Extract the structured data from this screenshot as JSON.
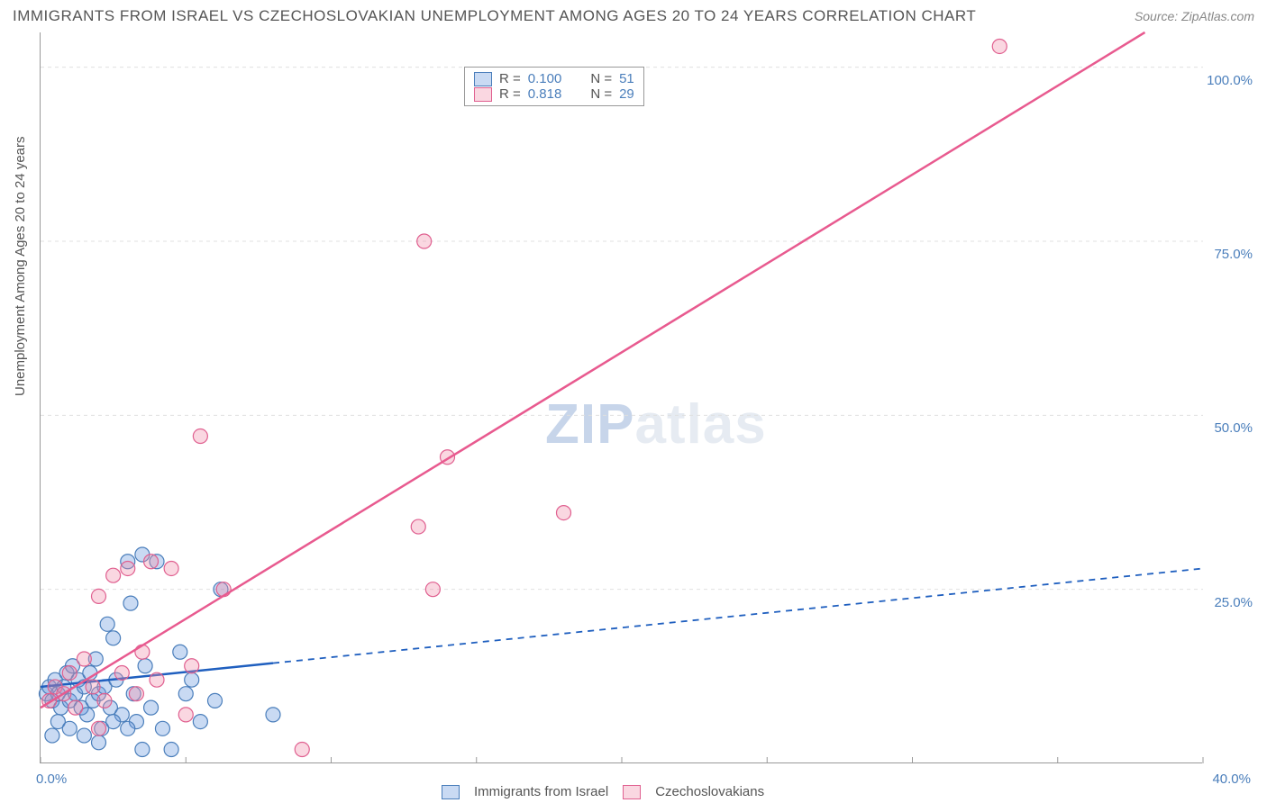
{
  "title": "IMMIGRANTS FROM ISRAEL VS CZECHOSLOVAKIAN UNEMPLOYMENT AMONG AGES 20 TO 24 YEARS CORRELATION CHART",
  "source": "Source: ZipAtlas.com",
  "ylabel": "Unemployment Among Ages 20 to 24 years",
  "watermark_zip": "ZIP",
  "watermark_atlas": "atlas",
  "chart": {
    "type": "scatter-correlation",
    "background_color": "#ffffff",
    "grid_color": "#e0e0e0",
    "axis_color": "#999999",
    "label_color": "#4a7ebb",
    "xlim": [
      0,
      40
    ],
    "ylim": [
      0,
      105
    ],
    "xticks": [
      0,
      5,
      10,
      15,
      20,
      25,
      30,
      35,
      40
    ],
    "xlabels_shown": {
      "0": "0.0%",
      "40": "40.0%"
    },
    "yticks": [
      25,
      50,
      75,
      100
    ],
    "ylabels": [
      "25.0%",
      "50.0%",
      "75.0%",
      "100.0%"
    ],
    "series": [
      {
        "name": "Immigrants from Israel",
        "color_fill": "rgba(100,150,220,0.35)",
        "color_stroke": "#4a7ebb",
        "line_color": "#1f5fbf",
        "line_width": 2.5,
        "line_dash_after": 8,
        "marker_radius": 8,
        "R": "0.100",
        "N": "51",
        "trend": {
          "x1": 0,
          "y1": 11,
          "x2": 40,
          "y2": 28
        },
        "points": [
          [
            0.2,
            10
          ],
          [
            0.3,
            11
          ],
          [
            0.4,
            9
          ],
          [
            0.5,
            12
          ],
          [
            0.6,
            10
          ],
          [
            0.7,
            8
          ],
          [
            0.8,
            11
          ],
          [
            0.9,
            13
          ],
          [
            1.0,
            9
          ],
          [
            1.1,
            14
          ],
          [
            1.2,
            10
          ],
          [
            1.3,
            12
          ],
          [
            1.4,
            8
          ],
          [
            1.5,
            11
          ],
          [
            1.6,
            7
          ],
          [
            1.7,
            13
          ],
          [
            1.8,
            9
          ],
          [
            1.9,
            15
          ],
          [
            2.0,
            10
          ],
          [
            2.1,
            5
          ],
          [
            2.2,
            11
          ],
          [
            2.3,
            20
          ],
          [
            2.4,
            8
          ],
          [
            2.5,
            18
          ],
          [
            2.6,
            12
          ],
          [
            2.8,
            7
          ],
          [
            3.0,
            29
          ],
          [
            3.1,
            23
          ],
          [
            3.2,
            10
          ],
          [
            3.3,
            6
          ],
          [
            3.5,
            30
          ],
          [
            3.6,
            14
          ],
          [
            3.8,
            8
          ],
          [
            4.0,
            29
          ],
          [
            4.2,
            5
          ],
          [
            4.5,
            2
          ],
          [
            4.8,
            16
          ],
          [
            5.0,
            10
          ],
          [
            5.2,
            12
          ],
          [
            5.5,
            6
          ],
          [
            6.0,
            9
          ],
          [
            6.2,
            25
          ],
          [
            0.4,
            4
          ],
          [
            0.6,
            6
          ],
          [
            1.0,
            5
          ],
          [
            1.5,
            4
          ],
          [
            2.0,
            3
          ],
          [
            2.5,
            6
          ],
          [
            3.0,
            5
          ],
          [
            3.5,
            2
          ],
          [
            8.0,
            7
          ]
        ]
      },
      {
        "name": "Czechoslovakians",
        "color_fill": "rgba(240,140,170,0.35)",
        "color_stroke": "#e06090",
        "line_color": "#e85a8f",
        "line_width": 2.5,
        "marker_radius": 8,
        "R": "0.818",
        "N": "29",
        "trend": {
          "x1": 0,
          "y1": 8,
          "x2": 38,
          "y2": 105
        },
        "points": [
          [
            0.3,
            9
          ],
          [
            0.5,
            11
          ],
          [
            0.8,
            10
          ],
          [
            1.0,
            13
          ],
          [
            1.2,
            8
          ],
          [
            1.5,
            15
          ],
          [
            1.8,
            11
          ],
          [
            2.0,
            24
          ],
          [
            2.2,
            9
          ],
          [
            2.5,
            27
          ],
          [
            2.8,
            13
          ],
          [
            3.0,
            28
          ],
          [
            3.3,
            10
          ],
          [
            3.5,
            16
          ],
          [
            3.8,
            29
          ],
          [
            4.0,
            12
          ],
          [
            4.5,
            28
          ],
          [
            5.0,
            7
          ],
          [
            5.2,
            14
          ],
          [
            5.5,
            47
          ],
          [
            6.3,
            25
          ],
          [
            9.0,
            2
          ],
          [
            13.0,
            34
          ],
          [
            13.2,
            75
          ],
          [
            13.5,
            25
          ],
          [
            14.0,
            44
          ],
          [
            18.0,
            36
          ],
          [
            33.0,
            103
          ],
          [
            2.0,
            5
          ]
        ]
      }
    ],
    "legend_top_labels": {
      "R": "R =",
      "N": "N ="
    },
    "legend_bottom": [
      "Immigrants from Israel",
      "Czechoslovakians"
    ]
  }
}
